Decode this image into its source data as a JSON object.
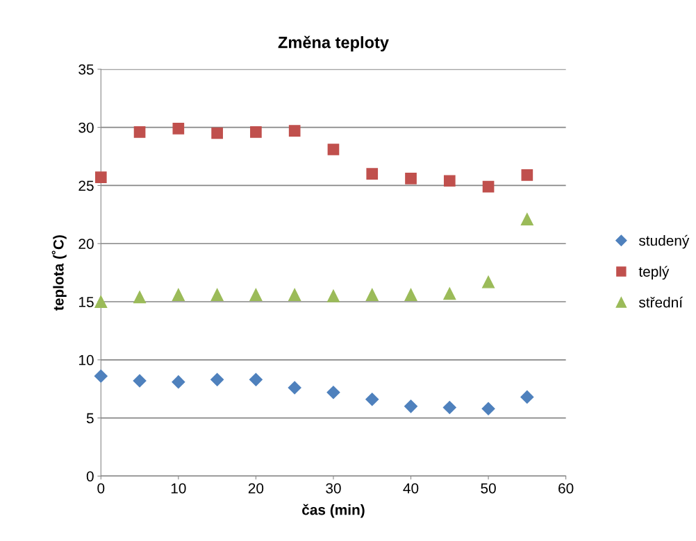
{
  "chart_data": {
    "type": "scatter",
    "title": "Změna teploty",
    "xlabel": "čas (min)",
    "ylabel": "teplota (˚C)",
    "x": [
      0,
      5,
      10,
      15,
      20,
      25,
      30,
      35,
      40,
      45,
      50,
      55
    ],
    "series": [
      {
        "name": "studený",
        "color": "#4f81bd",
        "marker": "diamond",
        "values": [
          8.6,
          8.2,
          8.1,
          8.3,
          8.3,
          7.6,
          7.2,
          6.6,
          6.0,
          5.9,
          5.8,
          6.8
        ]
      },
      {
        "name": "teplý",
        "color": "#c0504d",
        "marker": "square",
        "values": [
          25.7,
          29.6,
          29.9,
          29.5,
          29.6,
          29.7,
          28.1,
          26.0,
          25.6,
          25.4,
          24.9,
          25.9
        ]
      },
      {
        "name": "střední",
        "color": "#9bbb59",
        "marker": "triangle",
        "values": [
          15.0,
          15.4,
          15.6,
          15.6,
          15.6,
          15.6,
          15.5,
          15.6,
          15.6,
          15.7,
          16.7,
          22.1
        ]
      }
    ],
    "xlim": [
      0,
      60
    ],
    "xticks": [
      0,
      10,
      20,
      30,
      40,
      50,
      60
    ],
    "ylim": [
      0,
      35
    ],
    "yticks": [
      0,
      5,
      10,
      15,
      20,
      25,
      30,
      35
    ],
    "grid": "y",
    "legend": "right"
  }
}
